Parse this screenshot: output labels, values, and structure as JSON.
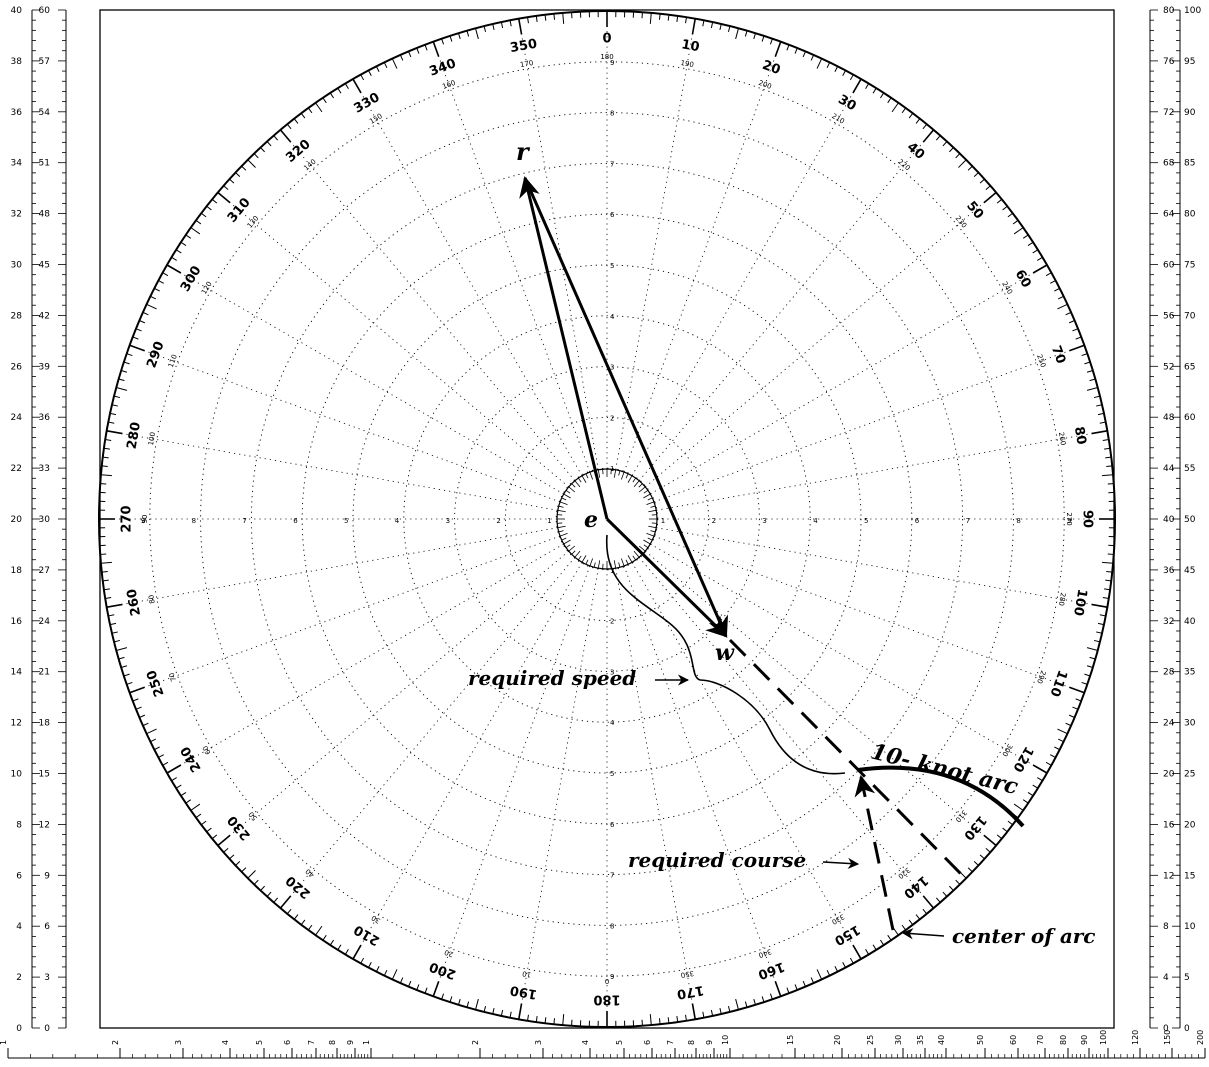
{
  "points": {
    "e": "e",
    "r": "r",
    "w": "w"
  },
  "annotations": {
    "required_speed": "required speed",
    "knot_arc": "10- knot arc",
    "required_course": "required course",
    "center_of_arc": "center of arc"
  },
  "scales": {
    "left_outer": [
      "0",
      "2",
      "4",
      "6",
      "8",
      "10",
      "12",
      "14",
      "16",
      "18",
      "20",
      "22",
      "24",
      "26",
      "28",
      "30",
      "32",
      "34",
      "36",
      "38",
      "40"
    ],
    "left_inner": [
      "0",
      "3",
      "6",
      "9",
      "12",
      "15",
      "18",
      "21",
      "24",
      "27",
      "30",
      "33",
      "36",
      "39",
      "42",
      "45",
      "48",
      "51",
      "54",
      "57",
      "60"
    ],
    "right_inner": [
      "0",
      "4",
      "8",
      "12",
      "16",
      "20",
      "24",
      "28",
      "32",
      "36",
      "40",
      "44",
      "48",
      "52",
      "56",
      "60",
      "64",
      "68",
      "72",
      "76",
      "80"
    ],
    "right_outer": [
      "0",
      "5",
      "10",
      "15",
      "20",
      "25",
      "30",
      "35",
      "40",
      "45",
      "50",
      "55",
      "60",
      "65",
      "70",
      "75",
      "80",
      "85",
      "90",
      "95",
      "100"
    ],
    "bottom": [
      "1",
      "2",
      "3",
      "4",
      "5",
      "6",
      "7",
      "8",
      "9",
      "1",
      "2",
      "3",
      "4",
      "5",
      "6",
      "7",
      "8",
      "9",
      "10",
      "15",
      "20",
      "25",
      "30",
      "35",
      "40",
      "50",
      "60",
      "70",
      "80",
      "90",
      "100",
      "120",
      "150",
      "200"
    ]
  },
  "rose": {
    "outer_labels": [
      "0",
      "10",
      "20",
      "30",
      "40",
      "50",
      "60",
      "70",
      "80",
      "90",
      "100",
      "110",
      "120",
      "130",
      "140",
      "150",
      "160",
      "170",
      "180",
      "190",
      "200",
      "210",
      "220",
      "230",
      "240",
      "250",
      "260",
      "270",
      "280",
      "290",
      "300",
      "310",
      "320",
      "330",
      "340",
      "350"
    ],
    "inner_labels": [
      "180",
      "190",
      "200",
      "210",
      "220",
      "230",
      "240",
      "250",
      "260",
      "270",
      "280",
      "290",
      "300",
      "310",
      "320",
      "330",
      "340",
      "350",
      "0",
      "10",
      "20",
      "30",
      "40",
      "50",
      "60",
      "70",
      "80",
      "90",
      "100",
      "110",
      "120",
      "130",
      "140",
      "150",
      "160",
      "170"
    ],
    "ring_labels": [
      "1",
      "2",
      "3",
      "4",
      "5",
      "6",
      "7",
      "8",
      "9"
    ]
  }
}
